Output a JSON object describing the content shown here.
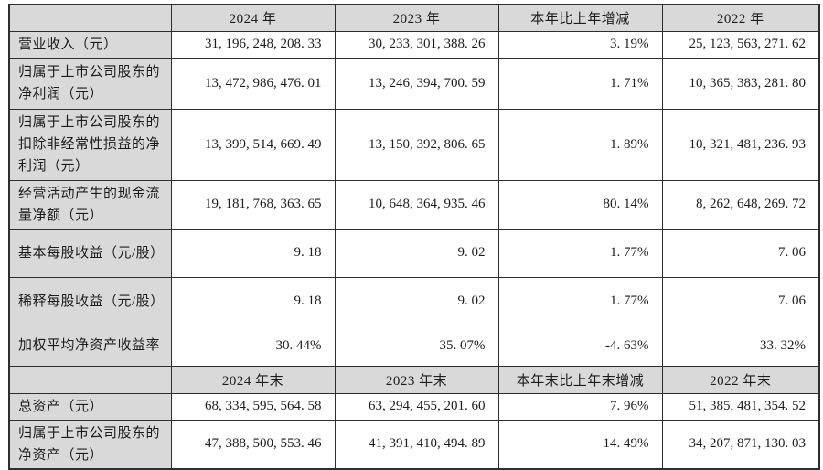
{
  "colors": {
    "header_bg": "#d9d9d9",
    "label_bg": "#d9d9d9",
    "cell_bg": "#ffffff",
    "border": "#2e2e2e",
    "text": "#1c1c1c"
  },
  "sections": [
    {
      "header": [
        "",
        "2024 年",
        "2023 年",
        "本年比上年增减",
        "2022 年"
      ],
      "rows": [
        {
          "label": "营业收入（元）",
          "values": [
            "31, 196, 248, 208. 33",
            "30, 233, 301, 388. 26",
            "3. 19%",
            "25, 123, 563, 271. 62"
          ]
        },
        {
          "label": "归属于上市公司股东的净利润（元）",
          "values": [
            "13, 472, 986, 476. 01",
            "13, 246, 394, 700. 59",
            "1. 71%",
            "10, 365, 383, 281. 80"
          ]
        },
        {
          "label": "归属于上市公司股东的扣除非经常性损益的净利润（元）",
          "values": [
            "13, 399, 514, 669. 49",
            "13, 150, 392, 806. 65",
            "1. 89%",
            "10, 321, 481, 236. 93"
          ]
        },
        {
          "label": "经营活动产生的现金流量净额（元）",
          "values": [
            "19, 181, 768, 363. 65",
            "10, 648, 364, 935. 46",
            "80. 14%",
            "8, 262, 648, 269. 72"
          ]
        },
        {
          "label": "基本每股收益（元/股）",
          "values": [
            "9. 18",
            "9. 02",
            "1. 77%",
            "7. 06"
          ]
        },
        {
          "label": "稀释每股收益（元/股）",
          "values": [
            "9. 18",
            "9. 02",
            "1. 77%",
            "7. 06"
          ]
        },
        {
          "label": "加权平均净资产收益率",
          "values": [
            "30. 44%",
            "35. 07%",
            "-4. 63%",
            "33. 32%"
          ]
        }
      ]
    },
    {
      "header": [
        "",
        "2024 年末",
        "2023 年末",
        "本年末比上年末增减",
        "2022 年末"
      ],
      "rows": [
        {
          "label": "总资产（元）",
          "values": [
            "68, 334, 595, 564. 58",
            "63, 294, 455, 201. 60",
            "7. 96%",
            "51, 385, 481, 354. 52"
          ]
        },
        {
          "label": "归属于上市公司股东的净资产（元）",
          "values": [
            "47, 388, 500, 553. 46",
            "41, 391, 410, 494. 89",
            "14. 49%",
            "34, 207, 871, 130. 03"
          ]
        }
      ]
    }
  ]
}
